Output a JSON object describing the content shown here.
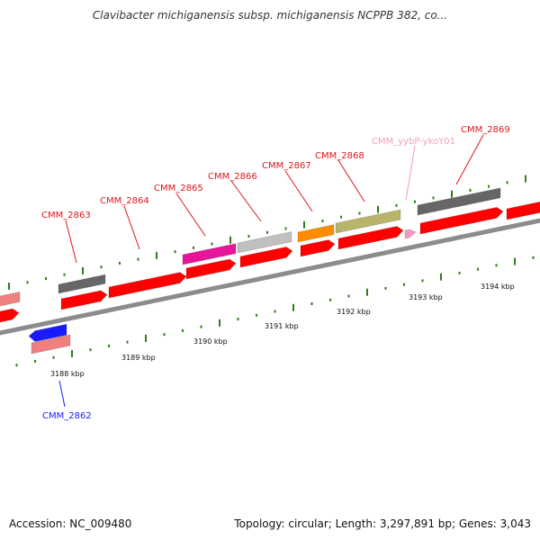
{
  "title": "Clavibacter michiganensis subsp. michiganensis NCPPB 382, co...",
  "footer": {
    "accession": "Accession: NC_009480",
    "summary": "Topology: circular; Length: 3,297,891 bp; Genes: 3,043"
  },
  "colors": {
    "backbone": "#8c8c8c",
    "tick": "#2e7d1a",
    "cds": "#ff0000",
    "label_red": "#e0151b",
    "label_blue": "#1a1aff",
    "label_pink": "#f49ac1"
  },
  "kbp_labels": [
    "3188 kbp",
    "3189 kbp",
    "3190 kbp",
    "3191 kbp",
    "3192 kbp",
    "3193 kbp",
    "3194 kbp"
  ],
  "gene_labels": [
    {
      "text": "CMM_2862",
      "color": "#1a1aff"
    },
    {
      "text": "CMM_2863",
      "color": "#e0151b"
    },
    {
      "text": "CMM_2864",
      "color": "#e0151b"
    },
    {
      "text": "CMM_2865",
      "color": "#e0151b"
    },
    {
      "text": "CMM_2866",
      "color": "#e0151b"
    },
    {
      "text": "CMM_2867",
      "color": "#e0151b"
    },
    {
      "text": "CMM_2868",
      "color": "#e0151b"
    },
    {
      "text": "CMM_yybP-ykoY01",
      "color": "#f49ac1"
    },
    {
      "text": "CMM_2869",
      "color": "#e0151b"
    }
  ]
}
